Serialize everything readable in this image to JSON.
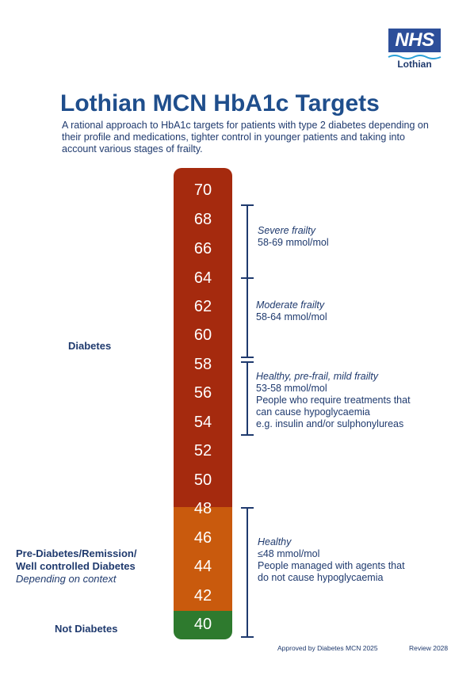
{
  "logo": {
    "brand": "NHS",
    "region": "Lothian"
  },
  "title": "Lothian MCN HbA1c Targets",
  "intro": "A rational approach to HbA1c targets for patients with type 2 diabetes depending on their profile and medications, tighter control in younger patients and taking into account various stages of frailty.",
  "scale": {
    "ticks": [
      "70",
      "68",
      "66",
      "64",
      "62",
      "60",
      "58",
      "56",
      "54",
      "52",
      "50",
      "48",
      "46",
      "44",
      "42",
      "40"
    ],
    "colors": {
      "diabetes": "#a52a0e",
      "pre_diabetes": "#c95a0d",
      "not_diabetes": "#2e7a2e"
    }
  },
  "categories": {
    "diabetes": "Diabetes",
    "pre_diabetes_line1": "Pre-Diabetes/Remission/",
    "pre_diabetes_line2": "Well controlled Diabetes",
    "pre_diabetes_note": "Depending on context",
    "not_diabetes": "Not Diabetes"
  },
  "targets": [
    {
      "title": "Severe frailty",
      "range": "58-69 mmol/mol",
      "notes": []
    },
    {
      "title": "Moderate frailty",
      "range": "58-64 mmol/mol",
      "notes": []
    },
    {
      "title": "Healthy, pre-frail, mild frailty",
      "range": "53-58 mmol/mol",
      "notes": [
        "People who require treatments that",
        "can cause hypoglycaemia",
        "e.g. insulin and/or sulphonylureas"
      ]
    },
    {
      "title": "Healthy",
      "range": "≤48 mmol/mol",
      "notes": [
        "People managed with agents that",
        "do not cause hypoglycaemia"
      ]
    }
  ],
  "footer": {
    "approved": "Approved by Diabetes MCN 2025",
    "review": "Review 2028"
  }
}
